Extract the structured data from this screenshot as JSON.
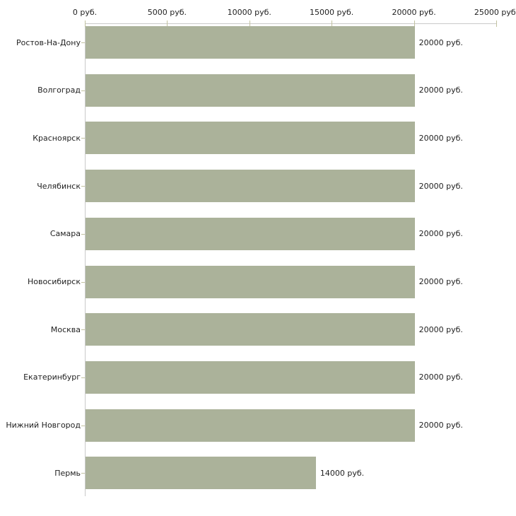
{
  "chart_data": {
    "type": "bar",
    "orientation": "horizontal",
    "title": "",
    "categories": [
      "Ростов-На-Дону",
      "Волгоград",
      "Красноярск",
      "Челябинск",
      "Самара",
      "Новосибирск",
      "Москва",
      "Екатеринбург",
      "Нижний Новгород",
      "Пермь"
    ],
    "values": [
      20000,
      20000,
      20000,
      20000,
      20000,
      20000,
      20000,
      20000,
      20000,
      14000
    ],
    "value_labels": [
      "20000 руб.",
      "20000 руб.",
      "20000 руб.",
      "20000 руб.",
      "20000 руб.",
      "20000 руб.",
      "20000 руб.",
      "20000 руб.",
      "20000 руб.",
      "14000 руб."
    ],
    "x_ticks": [
      {
        "value": 0,
        "label": "0 руб."
      },
      {
        "value": 5000,
        "label": "5000 руб."
      },
      {
        "value": 10000,
        "label": "10000 руб."
      },
      {
        "value": 15000,
        "label": "15000 руб."
      },
      {
        "value": 20000,
        "label": "20000 руб."
      },
      {
        "value": 25000,
        "label": "25000 руб."
      }
    ],
    "xlim": [
      0,
      25000
    ],
    "unit": "руб.",
    "legend": "none",
    "grid": "off",
    "colors": {
      "bar": "#abb29a",
      "axis_line": "#c9c9c9",
      "tick": "#c2c2a0",
      "text": "#1f1f1f"
    }
  }
}
